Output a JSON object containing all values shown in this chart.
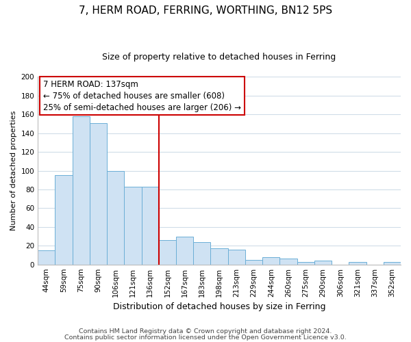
{
  "title": "7, HERM ROAD, FERRING, WORTHING, BN12 5PS",
  "subtitle": "Size of property relative to detached houses in Ferring",
  "xlabel": "Distribution of detached houses by size in Ferring",
  "ylabel": "Number of detached properties",
  "bar_labels": [
    "44sqm",
    "59sqm",
    "75sqm",
    "90sqm",
    "106sqm",
    "121sqm",
    "136sqm",
    "152sqm",
    "167sqm",
    "183sqm",
    "198sqm",
    "213sqm",
    "229sqm",
    "244sqm",
    "260sqm",
    "275sqm",
    "290sqm",
    "306sqm",
    "321sqm",
    "337sqm",
    "352sqm"
  ],
  "bar_values": [
    15,
    95,
    158,
    151,
    100,
    83,
    83,
    26,
    30,
    24,
    17,
    16,
    5,
    8,
    6,
    3,
    4,
    0,
    3,
    0,
    3
  ],
  "bar_color": "#cfe2f3",
  "bar_edge_color": "#6baed6",
  "vline_color": "#cc0000",
  "vline_x_idx": 6,
  "annotation_title": "7 HERM ROAD: 137sqm",
  "annotation_line1": "← 75% of detached houses are smaller (608)",
  "annotation_line2": "25% of semi-detached houses are larger (206) →",
  "annotation_box_color": "#ffffff",
  "annotation_box_edge": "#cc0000",
  "ylim": [
    0,
    200
  ],
  "yticks": [
    0,
    20,
    40,
    60,
    80,
    100,
    120,
    140,
    160,
    180,
    200
  ],
  "footnote1": "Contains HM Land Registry data © Crown copyright and database right 2024.",
  "footnote2": "Contains public sector information licensed under the Open Government Licence v3.0.",
  "grid_color": "#d0dce8",
  "background_color": "#ffffff",
  "title_fontsize": 11,
  "subtitle_fontsize": 9,
  "xlabel_fontsize": 9,
  "ylabel_fontsize": 8,
  "tick_fontsize": 7.5,
  "annotation_fontsize": 8.5,
  "footnote_fontsize": 6.8
}
